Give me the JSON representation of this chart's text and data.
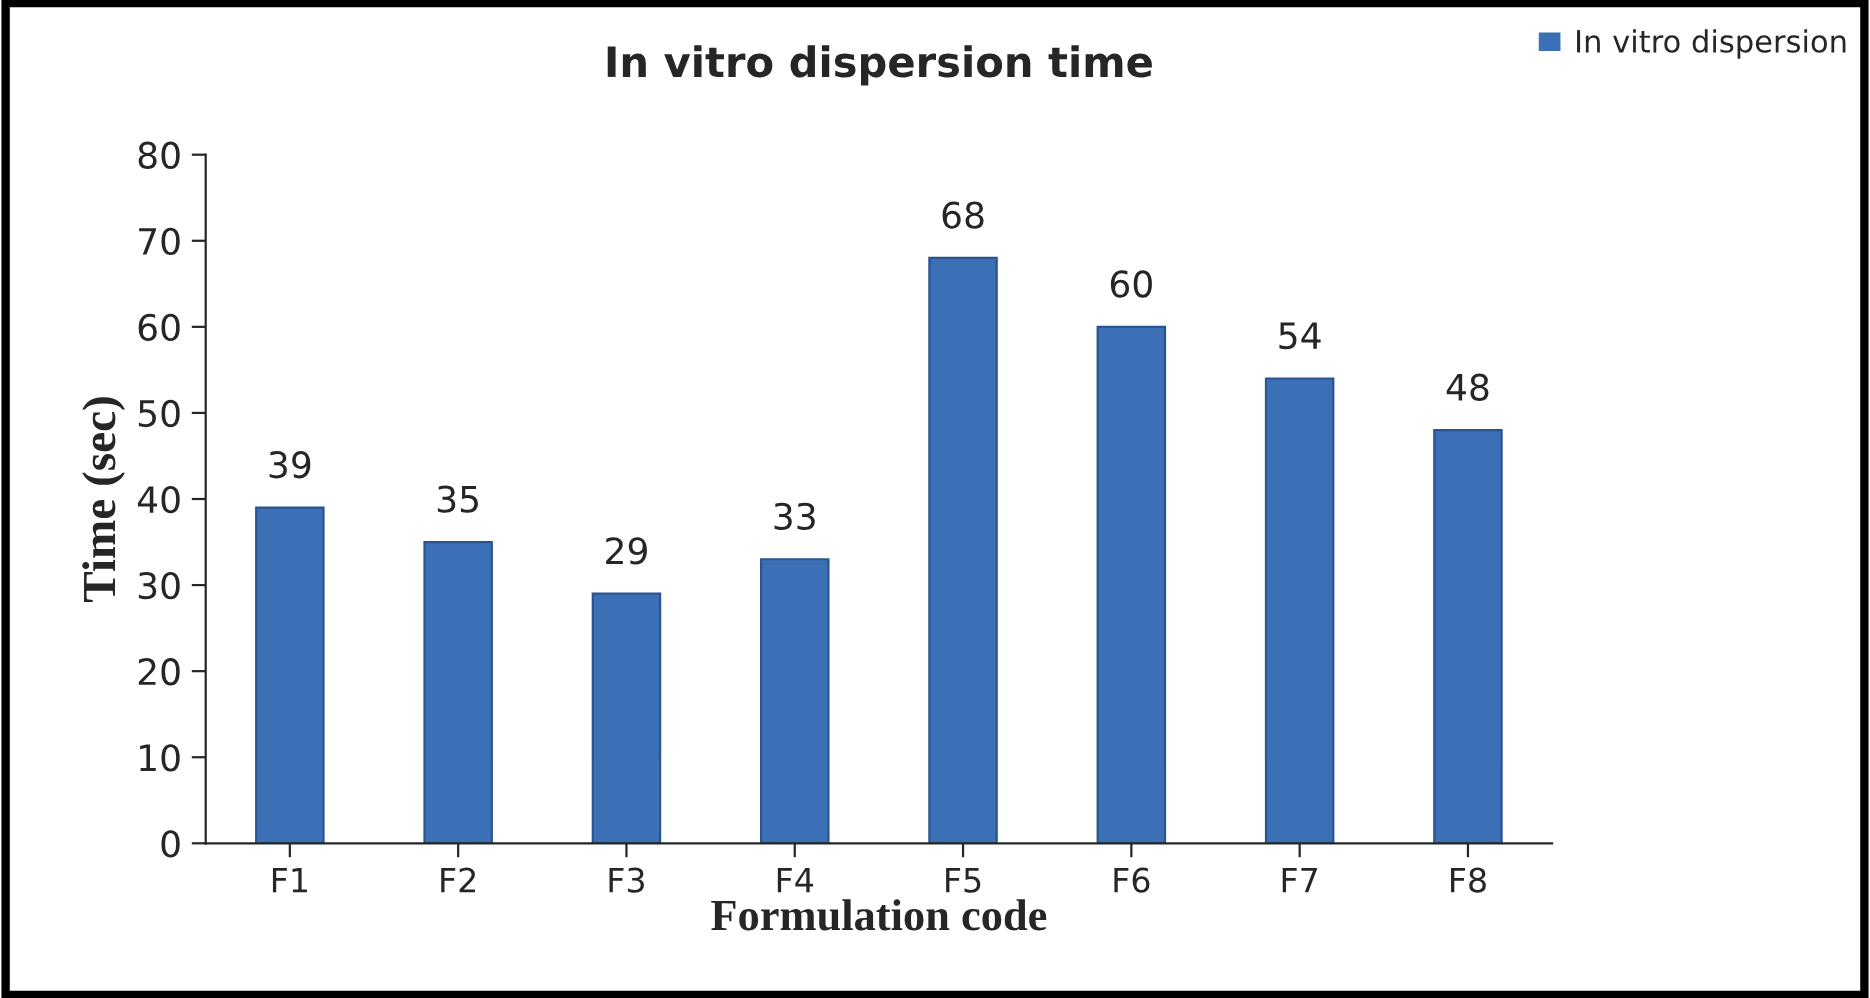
{
  "chart_data": {
    "type": "bar",
    "title": "In vitro dispersion time",
    "xlabel": "Formulation code",
    "ylabel": "Time (sec)",
    "categories": [
      "F1",
      "F2",
      "F3",
      "F4",
      "F5",
      "F6",
      "F7",
      "F8"
    ],
    "series": [
      {
        "name": "In vitro dispersion",
        "color": "#3b6fb6",
        "values": [
          39,
          35,
          29,
          33,
          68,
          60,
          54,
          48
        ]
      }
    ],
    "ylim": [
      0,
      80
    ],
    "yticks": [
      0,
      10,
      20,
      30,
      40,
      50,
      60,
      70,
      80
    ],
    "data_labels": true,
    "legend": "top right",
    "grid": false
  }
}
